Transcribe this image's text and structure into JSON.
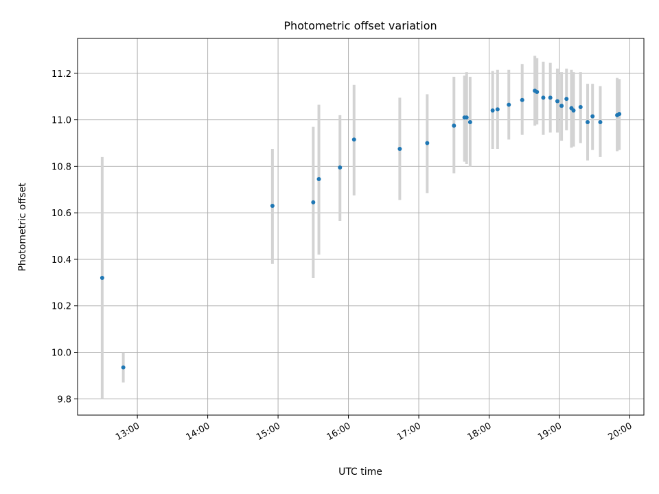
{
  "chart_data": {
    "type": "scatter",
    "title": "Photometric offset variation",
    "xlabel": "UTC time",
    "ylabel": "Photometric offset",
    "x_unit": "hour",
    "xlim": [
      12.15,
      20.2
    ],
    "ylim": [
      9.73,
      11.35
    ],
    "x_ticks": [
      {
        "value": 13,
        "label": "13:00"
      },
      {
        "value": 14,
        "label": "14:00"
      },
      {
        "value": 15,
        "label": "15:00"
      },
      {
        "value": 16,
        "label": "16:00"
      },
      {
        "value": 17,
        "label": "17:00"
      },
      {
        "value": 18,
        "label": "18:00"
      },
      {
        "value": 19,
        "label": "19:00"
      },
      {
        "value": 20,
        "label": "20:00"
      }
    ],
    "y_ticks": [
      {
        "value": 9.8,
        "label": "9.8"
      },
      {
        "value": 10.0,
        "label": "10.0"
      },
      {
        "value": 10.2,
        "label": "10.2"
      },
      {
        "value": 10.4,
        "label": "10.4"
      },
      {
        "value": 10.6,
        "label": "10.6"
      },
      {
        "value": 10.8,
        "label": "10.8"
      },
      {
        "value": 11.0,
        "label": "11.0"
      },
      {
        "value": 11.2,
        "label": "11.2"
      }
    ],
    "grid": true,
    "marker_color": "#1f77b4",
    "errorbar_color": "#d3d3d3",
    "points": [
      {
        "x": 12.5,
        "y": 10.32,
        "low": 9.8,
        "high": 10.84
      },
      {
        "x": 12.8,
        "y": 9.935,
        "low": 9.87,
        "high": 10.0
      },
      {
        "x": 14.92,
        "y": 10.63,
        "low": 10.38,
        "high": 10.875
      },
      {
        "x": 15.5,
        "y": 10.645,
        "low": 10.32,
        "high": 10.97
      },
      {
        "x": 15.58,
        "y": 10.745,
        "low": 10.42,
        "high": 11.065
      },
      {
        "x": 15.88,
        "y": 10.795,
        "low": 10.565,
        "high": 11.02
      },
      {
        "x": 16.08,
        "y": 10.915,
        "low": 10.675,
        "high": 11.15
      },
      {
        "x": 16.73,
        "y": 10.875,
        "low": 10.655,
        "high": 11.095
      },
      {
        "x": 17.12,
        "y": 10.9,
        "low": 10.685,
        "high": 11.11
      },
      {
        "x": 17.5,
        "y": 10.975,
        "low": 10.77,
        "high": 11.185
      },
      {
        "x": 17.65,
        "y": 11.01,
        "low": 10.82,
        "high": 11.19
      },
      {
        "x": 17.68,
        "y": 11.01,
        "low": 10.81,
        "high": 11.205
      },
      {
        "x": 17.73,
        "y": 10.99,
        "low": 10.8,
        "high": 11.185
      },
      {
        "x": 18.05,
        "y": 11.04,
        "low": 10.875,
        "high": 11.21
      },
      {
        "x": 18.12,
        "y": 11.045,
        "low": 10.875,
        "high": 11.215
      },
      {
        "x": 18.28,
        "y": 11.065,
        "low": 10.915,
        "high": 11.215
      },
      {
        "x": 18.47,
        "y": 11.085,
        "low": 10.935,
        "high": 11.24
      },
      {
        "x": 18.65,
        "y": 11.125,
        "low": 10.975,
        "high": 11.275
      },
      {
        "x": 18.68,
        "y": 11.12,
        "low": 10.98,
        "high": 11.265
      },
      {
        "x": 18.77,
        "y": 11.095,
        "low": 10.935,
        "high": 11.25
      },
      {
        "x": 18.87,
        "y": 11.095,
        "low": 10.945,
        "high": 11.245
      },
      {
        "x": 18.97,
        "y": 11.08,
        "low": 10.945,
        "high": 11.22
      },
      {
        "x": 19.03,
        "y": 11.06,
        "low": 10.91,
        "high": 11.205
      },
      {
        "x": 19.1,
        "y": 11.09,
        "low": 10.955,
        "high": 11.22
      },
      {
        "x": 19.17,
        "y": 11.05,
        "low": 10.88,
        "high": 11.215
      },
      {
        "x": 19.2,
        "y": 11.04,
        "low": 10.885,
        "high": 11.205
      },
      {
        "x": 19.3,
        "y": 11.055,
        "low": 10.9,
        "high": 11.205
      },
      {
        "x": 19.4,
        "y": 10.99,
        "low": 10.825,
        "high": 11.155
      },
      {
        "x": 19.47,
        "y": 11.015,
        "low": 10.87,
        "high": 11.155
      },
      {
        "x": 19.58,
        "y": 10.99,
        "low": 10.84,
        "high": 11.145
      },
      {
        "x": 19.82,
        "y": 11.02,
        "low": 10.865,
        "high": 11.18
      },
      {
        "x": 19.85,
        "y": 11.025,
        "low": 10.87,
        "high": 11.175
      }
    ]
  }
}
